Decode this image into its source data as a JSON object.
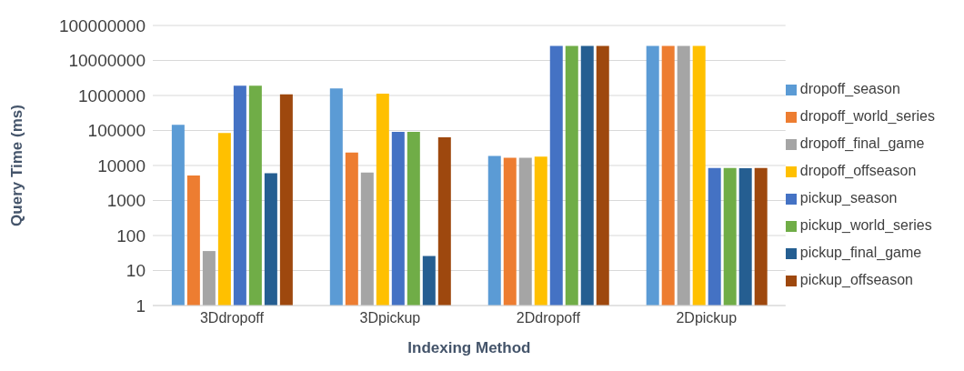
{
  "chart_data": {
    "type": "bar",
    "xlabel": "Indexing Method",
    "ylabel": "Query Time (ms)",
    "categories": [
      "3Ddropoff",
      "3Dpickup",
      "2Ddropoff",
      "2Dpickup"
    ],
    "series": [
      {
        "name": "dropoff_season",
        "color": "#5b9bd5",
        "values": [
          145000,
          1600000,
          18600,
          26000000
        ]
      },
      {
        "name": "dropoff_world_series",
        "color": "#ed7d31",
        "values": [
          5200,
          23500,
          16600,
          26000000
        ]
      },
      {
        "name": "dropoff_final_game",
        "color": "#a5a5a5",
        "values": [
          36,
          6300,
          16600,
          26000000
        ]
      },
      {
        "name": "dropoff_offseason",
        "color": "#ffc000",
        "values": [
          85000,
          1120000,
          17800,
          26000000
        ]
      },
      {
        "name": "pickup_season",
        "color": "#4472c4",
        "values": [
          1900000,
          92000,
          26000000,
          8500
        ]
      },
      {
        "name": "pickup_world_series",
        "color": "#70ad47",
        "values": [
          1900000,
          92000,
          26000000,
          8500
        ]
      },
      {
        "name": "pickup_final_game",
        "color": "#255e91",
        "values": [
          6000,
          26,
          26000000,
          8300
        ]
      },
      {
        "name": "pickup_offseason",
        "color": "#9e480e",
        "values": [
          1070000,
          64000,
          26000000,
          8500
        ]
      }
    ],
    "log": "y",
    "ylim": [
      1,
      100000000
    ],
    "yticks": [
      1,
      10,
      100,
      1000,
      10000,
      100000,
      1000000,
      10000000,
      100000000
    ],
    "grid": "y",
    "legend": "right"
  }
}
